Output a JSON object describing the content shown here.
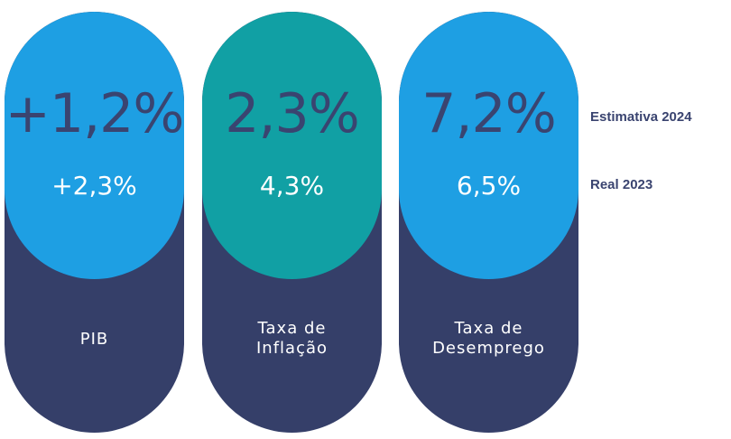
{
  "colors": {
    "bottom": "#353f69",
    "value_text": "#3a4470",
    "light_blue": "#1e9fe3",
    "teal": "#11a0a4",
    "white": "#ffffff"
  },
  "chart_data": {
    "type": "table",
    "legend": {
      "estimate": "Estimativa 2024",
      "real": "Real 2023"
    },
    "items": [
      {
        "label_lines": [
          "PIB"
        ],
        "estimate_2024": "+1,2%",
        "real_2023": "+2,3%",
        "estimate_value": 1.2,
        "real_value": 2.3,
        "color": "#1e9fe3"
      },
      {
        "label_lines": [
          "Taxa de",
          "Inflação"
        ],
        "estimate_2024": "2,3%",
        "real_2023": "4,3%",
        "estimate_value": 2.3,
        "real_value": 4.3,
        "color": "#11a0a4"
      },
      {
        "label_lines": [
          "Taxa de",
          "Desemprego"
        ],
        "estimate_2024": "7,2%",
        "real_2023": "6,5%",
        "estimate_value": 7.2,
        "real_value": 6.5,
        "color": "#1e9fe3"
      }
    ]
  }
}
